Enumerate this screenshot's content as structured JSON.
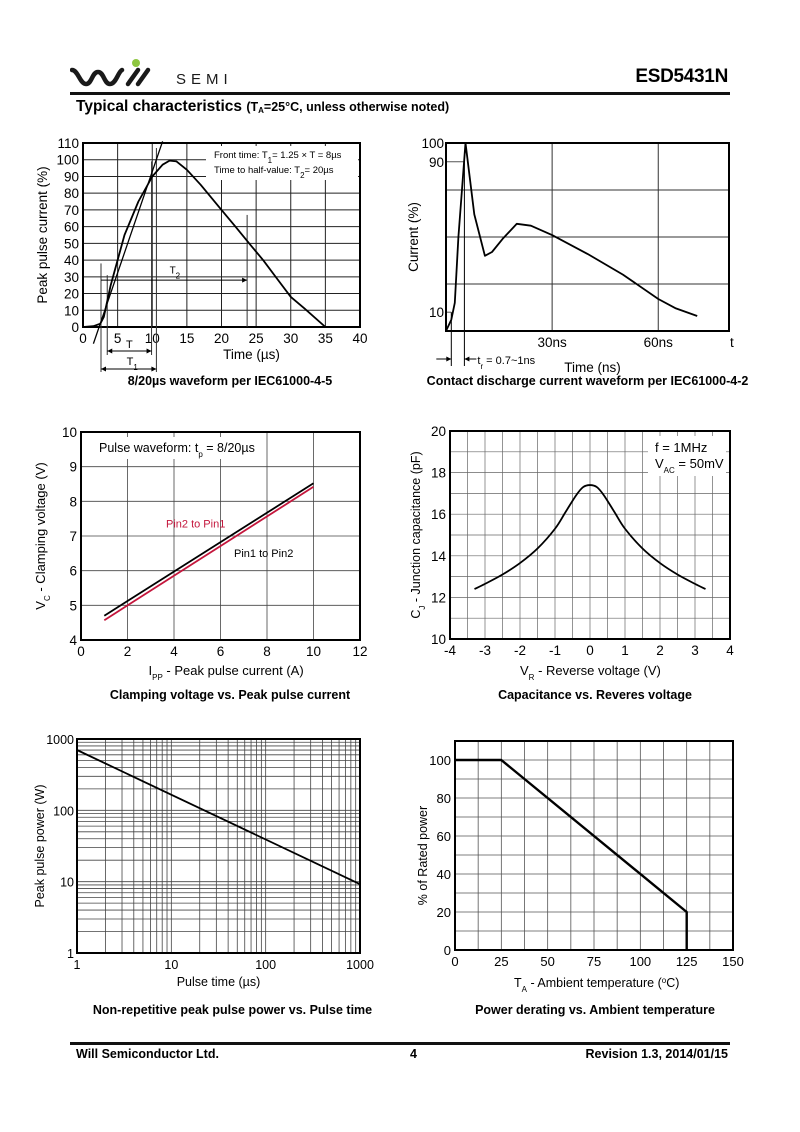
{
  "header": {
    "logo_text": "SEMI",
    "logo_accent_color": "#8dc63f",
    "part_number": "ESD5431N",
    "section_title": "Typical characteristics",
    "section_condition_prefix": "(T",
    "section_condition_sub": "A",
    "section_condition_suffix": "=25°C, unless otherwise noted)"
  },
  "footer": {
    "company": "Will Semiconductor Ltd.",
    "page": "4",
    "revision": "Revision 1.3, 2014/01/15"
  },
  "chart_data": [
    {
      "id": "waveform-8-20",
      "type": "line",
      "caption": "8/20µs waveform per IEC61000-4-5",
      "xlabel": "Time (µs)",
      "ylabel": "Peak pulse current (%)",
      "xlim": [
        0,
        40
      ],
      "ylim": [
        0,
        110
      ],
      "xticks": [
        0,
        5,
        10,
        15,
        20,
        25,
        30,
        35,
        40
      ],
      "yticks": [
        0,
        10,
        20,
        30,
        40,
        50,
        60,
        70,
        80,
        90,
        100,
        110
      ],
      "grid": true,
      "annotations": [
        "Front time: T1= 1.25 × T = 8µs",
        "Time to half-value: T2= 20µs",
        "T",
        "T1",
        "T2"
      ],
      "series": [
        {
          "name": "waveform",
          "x": [
            0,
            1.5,
            2.5,
            3,
            4,
            5,
            6,
            8,
            10,
            11.5,
            12.5,
            13.5,
            15,
            17,
            20,
            22,
            24,
            26,
            28,
            30,
            32,
            35
          ],
          "y": [
            0,
            0.5,
            2,
            6,
            25,
            40,
            55,
            75,
            90,
            97,
            99.5,
            99,
            94,
            85,
            70,
            60,
            50,
            40,
            29,
            18,
            11,
            0
          ]
        },
        {
          "name": "front-tangent",
          "x": [
            1.5,
            11.5
          ],
          "y": [
            -10,
            111
          ]
        }
      ]
    },
    {
      "id": "esd-contact-discharge",
      "type": "line",
      "caption": "Contact discharge current waveform per IEC61000-4-2",
      "xlabel": "Time (ns)",
      "ylabel": "Current (%)",
      "xlim": [
        0,
        80
      ],
      "ylim": [
        0,
        100
      ],
      "xtick_labels": [
        {
          "x": 30,
          "label": "30ns"
        },
        {
          "x": 60,
          "label": "60ns"
        },
        {
          "x": 80,
          "label": "t"
        }
      ],
      "ytick_labels": [
        {
          "y": 10,
          "label": "10"
        },
        {
          "y": 90,
          "label": "90"
        },
        {
          "y": 100,
          "label": "100"
        }
      ],
      "annotation": "t_r = 0.7~1ns",
      "series": [
        {
          "name": "current",
          "x": [
            0,
            1.5,
            2.5,
            3.5,
            5.5,
            8,
            11,
            13,
            16,
            20,
            24,
            30,
            40,
            50,
            60,
            65,
            71
          ],
          "y": [
            0,
            6,
            15,
            50,
            100,
            62,
            40,
            42,
            49,
            57,
            56,
            51,
            41,
            30,
            17,
            12,
            8
          ]
        }
      ]
    },
    {
      "id": "clamping-voltage",
      "type": "line",
      "caption": "Clamping voltage vs. Peak pulse current",
      "xlabel": "I_PP - Peak pulse current (A)",
      "ylabel": "V_C - Clamping voltage (V)",
      "xlim": [
        0,
        12
      ],
      "ylim": [
        4,
        10
      ],
      "xticks": [
        0,
        2,
        4,
        6,
        8,
        10,
        12
      ],
      "yticks": [
        4,
        5,
        6,
        7,
        8,
        9,
        10
      ],
      "annotation": "Pulse waveform: t_p = 8/20µs",
      "series": [
        {
          "name": "Pin1 to Pin2",
          "color": "#000000",
          "x": [
            1,
            10
          ],
          "y": [
            4.7,
            8.52
          ]
        },
        {
          "name": "Pin2 to Pin1",
          "color": "#c4163c",
          "x": [
            1,
            10
          ],
          "y": [
            4.57,
            8.42
          ]
        }
      ]
    },
    {
      "id": "capacitance",
      "type": "line",
      "caption": "Capacitance vs. Reveres voltage",
      "xlabel": "V_R - Reverse voltage (V)",
      "ylabel": "C_J - Junction capacitance (pF)",
      "xlim": [
        -4,
        4
      ],
      "ylim": [
        10,
        20
      ],
      "xticks": [
        -4,
        -3,
        -2,
        -1,
        0,
        1,
        2,
        3,
        4
      ],
      "yticks": [
        10,
        12,
        14,
        16,
        18,
        20
      ],
      "annotation_lines": [
        "f = 1MHz",
        "V_AC = 50mV"
      ],
      "series": [
        {
          "name": "Cj",
          "x": [
            -3.3,
            -3,
            -2.5,
            -2,
            -1.5,
            -1,
            -0.7,
            -0.4,
            -0.2,
            0,
            0.2,
            0.4,
            0.7,
            1,
            1.5,
            2,
            2.5,
            3,
            3.3
          ],
          "y": [
            12.4,
            12.65,
            13.1,
            13.65,
            14.35,
            15.3,
            16.1,
            16.9,
            17.3,
            17.4,
            17.3,
            16.9,
            16.1,
            15.3,
            14.35,
            13.65,
            13.1,
            12.65,
            12.4
          ]
        }
      ]
    },
    {
      "id": "peak-pulse-power",
      "type": "line",
      "caption": "Non-repetitive peak pulse power vs. Pulse time",
      "xlabel": "Pulse time (µs)",
      "ylabel": "Peak pulse power (W)",
      "xscale": "log",
      "yscale": "log",
      "xlim": [
        1,
        1000
      ],
      "ylim": [
        1,
        1000
      ],
      "xticks": [
        1,
        10,
        100,
        1000
      ],
      "yticks": [
        1,
        10,
        100,
        1000
      ],
      "series": [
        {
          "name": "Ppk",
          "x": [
            1,
            1000
          ],
          "y": [
            700,
            9.2
          ]
        }
      ]
    },
    {
      "id": "power-derating",
      "type": "line",
      "caption": "Power derating vs. Ambient temperature",
      "xlabel": "T_A - Ambient temperature (°C)",
      "ylabel": "% of Rated power",
      "xlim": [
        0,
        150
      ],
      "ylim": [
        0,
        110
      ],
      "xticks": [
        0,
        25,
        50,
        75,
        100,
        125,
        150
      ],
      "yticks": [
        0,
        20,
        40,
        60,
        80,
        100
      ],
      "series": [
        {
          "name": "derating",
          "x": [
            0,
            25,
            125,
            125
          ],
          "y": [
            100,
            100,
            20,
            0
          ]
        }
      ]
    }
  ]
}
